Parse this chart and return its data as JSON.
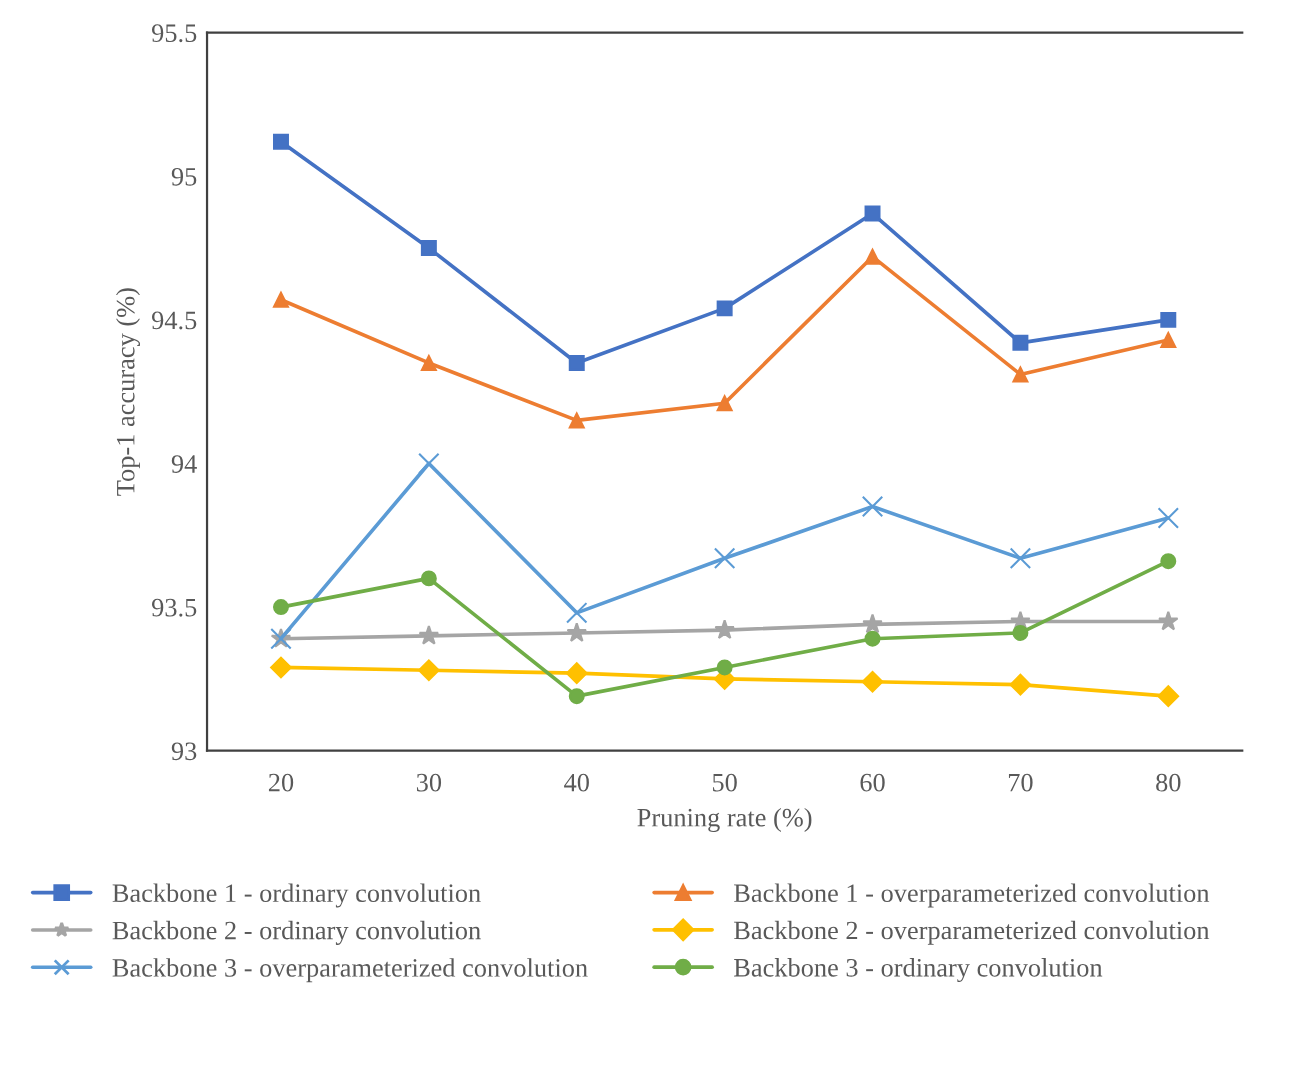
{
  "chart_data": {
    "type": "line",
    "xlabel": "Pruning rate (%)",
    "ylabel": "Top-1 accuracy (%)",
    "categories": [
      "20",
      "30",
      "40",
      "50",
      "60",
      "70",
      "80"
    ],
    "ylim": [
      93,
      95.5
    ],
    "yticks": [
      93,
      93.5,
      94,
      94.5,
      95,
      95.5
    ],
    "grid": false,
    "legend": "bottom",
    "line_style": "solid",
    "series": [
      {
        "name": "Backbone 1 - ordinary convolution",
        "color": "#4472c4",
        "marker": "square",
        "values": [
          95.12,
          94.75,
          94.35,
          94.54,
          94.87,
          94.42,
          94.5
        ]
      },
      {
        "name": "Backbone 1 - overparameterized convolution",
        "color": "#ed7d31",
        "marker": "triangle",
        "values": [
          94.57,
          94.35,
          94.15,
          94.21,
          94.72,
          94.31,
          94.43
        ]
      },
      {
        "name": "Backbone 2 - ordinary convolution",
        "color": "#a5a5a5",
        "marker": "star",
        "values": [
          93.39,
          93.4,
          93.41,
          93.42,
          93.44,
          93.45,
          93.45
        ]
      },
      {
        "name": "Backbone 2 - overparameterized convolution",
        "color": "#ffc000",
        "marker": "diamond",
        "values": [
          93.29,
          93.28,
          93.27,
          93.25,
          93.24,
          93.23,
          93.19
        ]
      },
      {
        "name": "Backbone 3 - overparameterized convolution",
        "color": "#5b9bd5",
        "marker": "cross",
        "values": [
          93.39,
          94.0,
          93.48,
          93.67,
          93.85,
          93.67,
          93.81
        ]
      },
      {
        "name": "Backbone 3 - ordinary convolution",
        "color": "#70ad47",
        "marker": "circle",
        "values": [
          93.5,
          93.6,
          93.19,
          93.29,
          93.39,
          93.41,
          93.66
        ]
      }
    ]
  }
}
